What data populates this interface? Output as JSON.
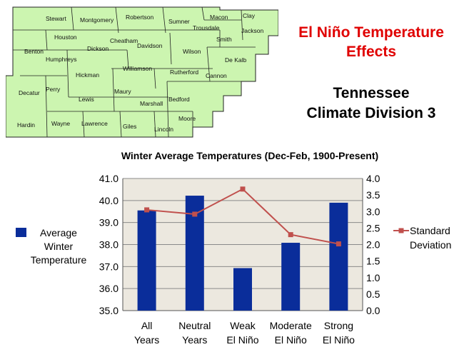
{
  "map": {
    "counties": [
      "Stewart",
      "Montgomery",
      "Robertson",
      "Sumner",
      "Macon",
      "Clay",
      "Trousdale",
      "Jackson",
      "Smith",
      "Houston",
      "Cheatham",
      "Davidson",
      "Dickson",
      "Benton",
      "Humphreys",
      "Wilson",
      "De Kalb",
      "Williamson",
      "Hickman",
      "Rutherford",
      "Cannon",
      "Perry",
      "Maury",
      "Decatur",
      "Lewis",
      "Bedford",
      "Marshall",
      "Moore",
      "Hardin",
      "Wayne",
      "Lawrence",
      "Giles",
      "Lincoln"
    ]
  },
  "header": {
    "title_line1": "El Niño Temperature",
    "title_line2": "Effects",
    "subtitle_line1": "Tennessee",
    "subtitle_line2": "Climate Division 3"
  },
  "colors": {
    "bar": "#0a2d9a",
    "line": "#c0504d",
    "plot_bg": "#ece8df",
    "title_red": "#e00000",
    "map_fill": "#ccf5b0"
  },
  "chart_data": {
    "type": "bar",
    "title": "Winter Average Temperatures (Dec-Feb, 1900-Present)",
    "categories": [
      [
        "All",
        "Years"
      ],
      [
        "Neutral",
        "Years"
      ],
      [
        "Weak",
        "El Niño"
      ],
      [
        "Moderate",
        "El Niño"
      ],
      [
        "Strong",
        "El Niño"
      ]
    ],
    "series": [
      {
        "name": "Average Winter Temperature",
        "type": "bar",
        "axis": "left",
        "values": [
          39.55,
          40.22,
          36.93,
          38.08,
          39.9
        ]
      },
      {
        "name": "Standard Deviation",
        "type": "line",
        "axis": "right",
        "values": [
          3.05,
          2.92,
          3.68,
          2.3,
          2.02
        ]
      }
    ],
    "ylim": [
      35.0,
      41.0
    ],
    "y_ticks": [
      "35.0",
      "36.0",
      "37.0",
      "38.0",
      "39.0",
      "40.0",
      "41.0"
    ],
    "y2lim": [
      0.0,
      4.0
    ],
    "y2_ticks": [
      "0.0",
      "0.5",
      "1.0",
      "1.5",
      "2.0",
      "2.5",
      "3.0",
      "3.5",
      "4.0"
    ],
    "legend_left": [
      "Average",
      "Winter",
      "Temperature"
    ],
    "legend_right": [
      "Standard",
      "Deviation"
    ]
  }
}
